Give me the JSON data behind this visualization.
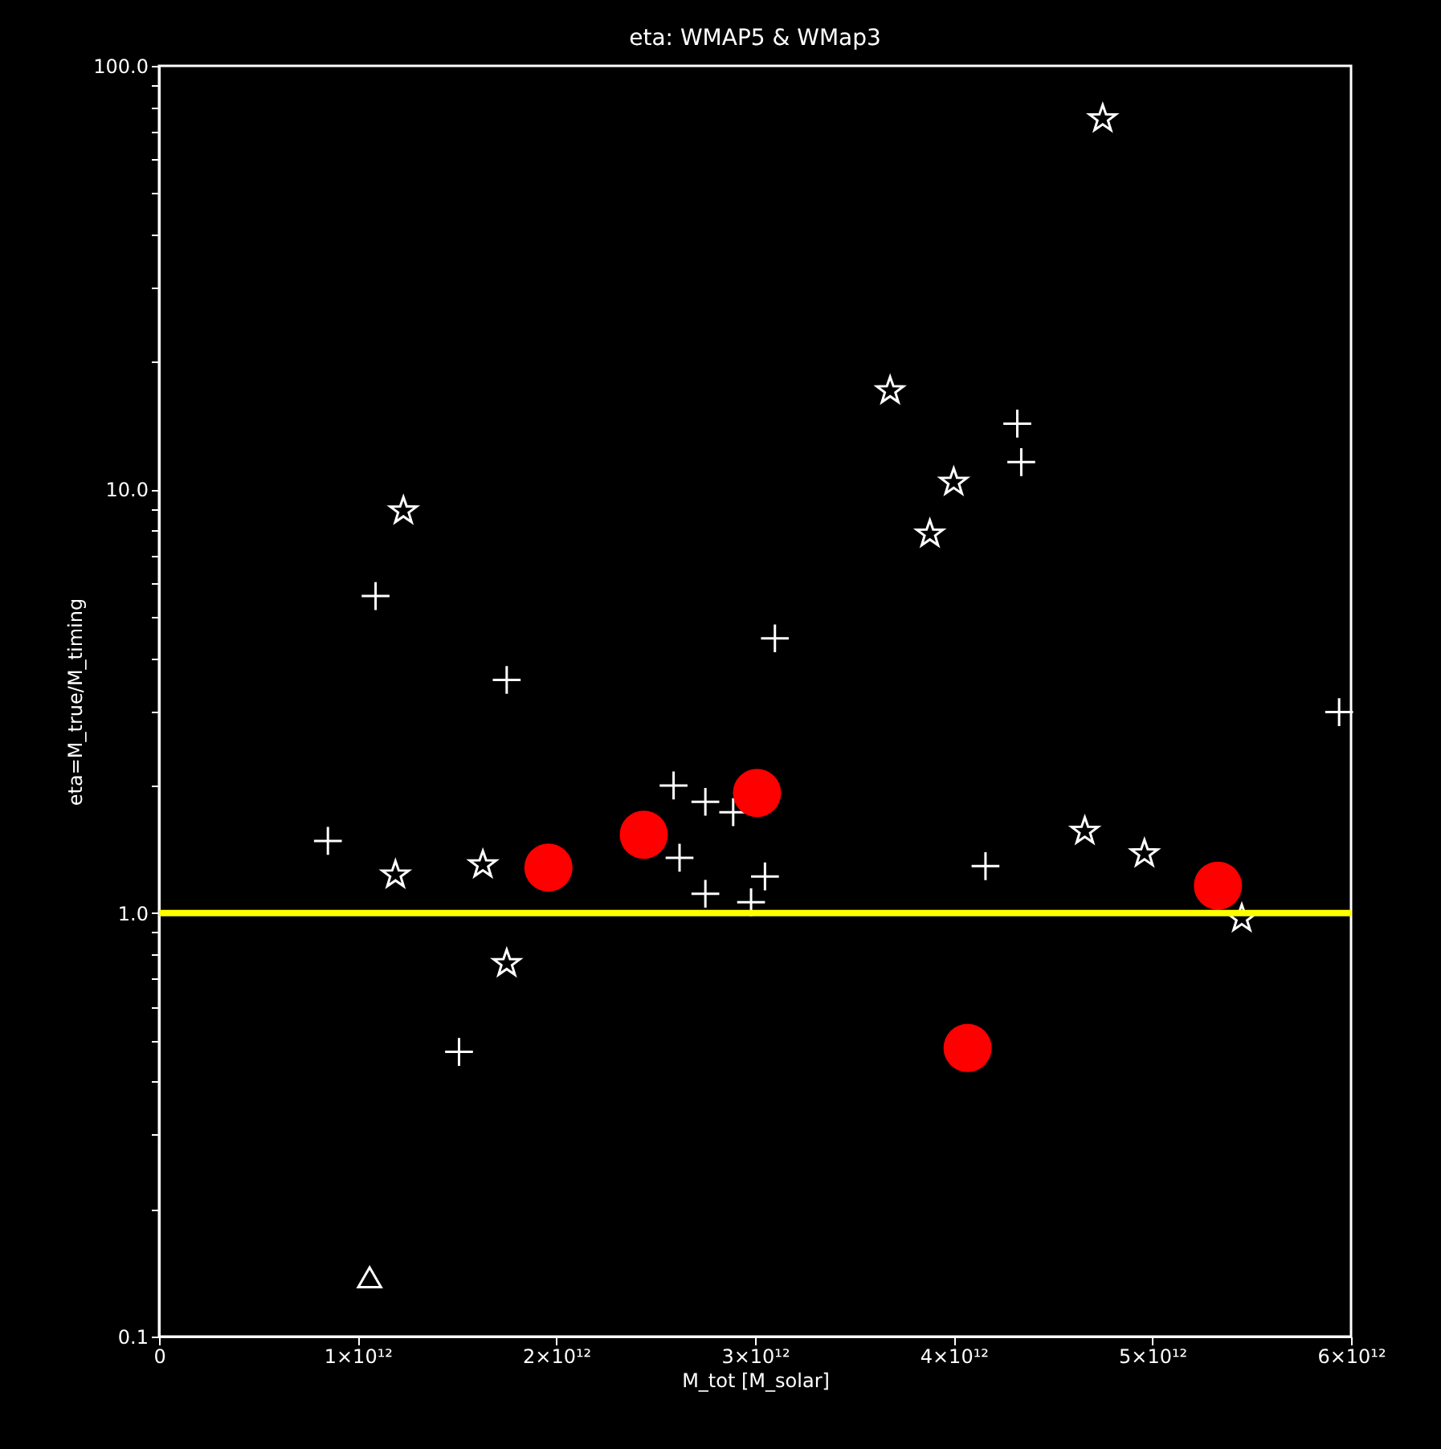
{
  "chart_data": {
    "type": "scatter",
    "title": "eta: WMAP5 & WMap3",
    "xlabel": "M_tot [M_solar]",
    "ylabel": "eta=M_true/M_timing",
    "log": "y",
    "grid": false,
    "xlim": [
      0,
      6000000000000.0
    ],
    "xticks": [
      0,
      {
        "value": 1000000000000.0,
        "label": "1×10¹²"
      },
      {
        "value": 2000000000000.0,
        "label": "2×10¹²"
      },
      {
        "value": 3000000000000.0,
        "label": "3×10¹²"
      },
      {
        "value": 4000000000000.0,
        "label": "4×10¹²"
      },
      {
        "value": 5000000000000.0,
        "label": "5×10¹²"
      },
      {
        "value": 6000000000000.0,
        "label": "6×10¹²"
      }
    ],
    "ylim": [
      0.1,
      100
    ],
    "yticks": [
      {
        "value": 0.1,
        "label": "0.1"
      },
      {
        "value": 0.2,
        "label": null
      },
      {
        "value": 0.3,
        "label": null
      },
      {
        "value": 0.4,
        "label": null
      },
      {
        "value": 0.5,
        "label": null
      },
      {
        "value": 0.6,
        "label": null
      },
      {
        "value": 0.7,
        "label": null
      },
      {
        "value": 0.8,
        "label": null
      },
      {
        "value": 0.9,
        "label": null
      },
      {
        "value": 1,
        "label": "1.0"
      },
      {
        "value": 2,
        "label": null
      },
      {
        "value": 3,
        "label": null
      },
      {
        "value": 4,
        "label": null
      },
      {
        "value": 5,
        "label": null
      },
      {
        "value": 6,
        "label": null
      },
      {
        "value": 7,
        "label": null
      },
      {
        "value": 8,
        "label": null
      },
      {
        "value": 9,
        "label": null
      },
      {
        "value": 10,
        "label": "10.0"
      },
      {
        "value": 20,
        "label": null
      },
      {
        "value": 30,
        "label": null
      },
      {
        "value": 40,
        "label": null
      },
      {
        "value": 50,
        "label": null
      },
      {
        "value": 60,
        "label": null
      },
      {
        "value": 70,
        "label": null
      },
      {
        "value": 80,
        "label": null
      },
      {
        "value": 90,
        "label": null
      },
      {
        "value": 100,
        "label": "100.0"
      }
    ],
    "ref_lines": [
      {
        "axis": "y",
        "value": 1,
        "color": "#ffff00"
      }
    ],
    "series": [
      {
        "color": "#ffffff",
        "marker": "cross",
        "x": [
          850000000000.0,
          1090000000000.0,
          1750000000000.0,
          1510000000000.0,
          2590000000000.0,
          2620000000000.0,
          2750000000000.0,
          2750000000000.0,
          2890000000000.0,
          2980000000000.0,
          3050000000000.0,
          3100000000000.0,
          4160000000000.0,
          4320000000000.0,
          4340000000000.0,
          5940000000000.0
        ],
        "values": [
          1.48,
          5.6,
          3.55,
          0.47,
          2.0,
          1.35,
          1.83,
          1.11,
          1.73,
          1.06,
          1.22,
          4.45,
          1.29,
          14.3,
          11.6,
          2.98
        ]
      },
      {
        "color": "#ffffff",
        "marker": "star",
        "x": [
          1230000000000.0,
          1190000000000.0,
          1630000000000.0,
          1750000000000.0,
          3680000000000.0,
          3880000000000.0,
          4000000000000.0,
          4750000000000.0,
          4660000000000.0,
          4960000000000.0,
          5450000000000.0
        ],
        "values": [
          8.9,
          1.23,
          1.3,
          0.76,
          17.1,
          7.85,
          10.4,
          75,
          1.56,
          1.38,
          0.97
        ]
      },
      {
        "color": "#ffffff",
        "marker": "triangle",
        "x": [
          1060000000000.0
        ],
        "values": [
          0.138
        ]
      },
      {
        "color": "#ff0000",
        "marker": "circle",
        "x": [
          1960000000000.0,
          2440000000000.0,
          3010000000000.0,
          4070000000000.0,
          5330000000000.0
        ],
        "values": [
          1.28,
          1.53,
          1.92,
          0.48,
          1.16
        ]
      }
    ]
  }
}
